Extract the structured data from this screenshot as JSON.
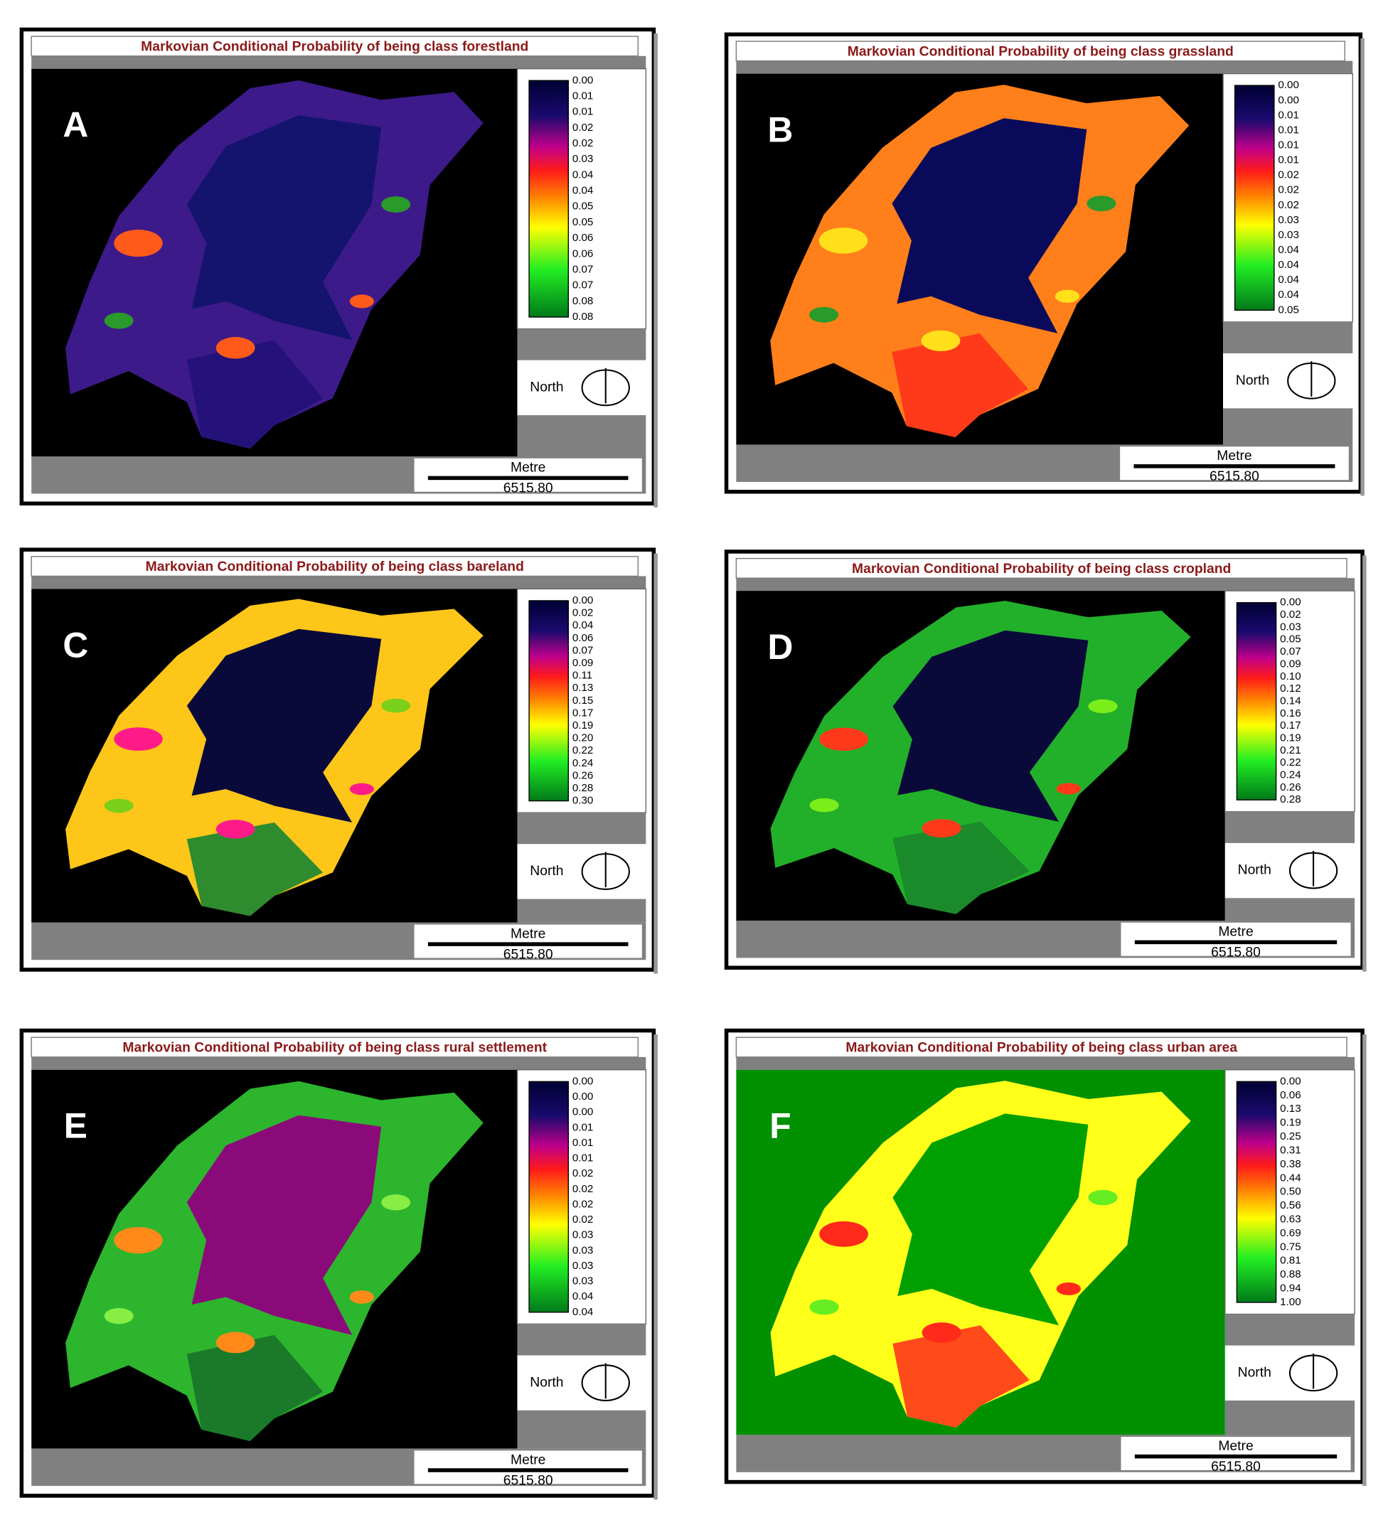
{
  "panels": [
    {
      "letter": "A",
      "title": "Markovian Conditional Probability of being class forestland",
      "legend": [
        "0.00",
        "0.01",
        "0.01",
        "0.02",
        "0.02",
        "0.03",
        "0.04",
        "0.04",
        "0.05",
        "0.05",
        "0.06",
        "0.06",
        "0.07",
        "0.07",
        "0.08",
        "0.08"
      ],
      "north": "North",
      "scale_unit": "Metre",
      "scale_value": "6515.80"
    },
    {
      "letter": "B",
      "title": "Markovian Conditional Probability of being class grassland",
      "legend": [
        "0.00",
        "0.00",
        "0.01",
        "0.01",
        "0.01",
        "0.01",
        "0.02",
        "0.02",
        "0.02",
        "0.03",
        "0.03",
        "0.04",
        "0.04",
        "0.04",
        "0.04",
        "0.05"
      ],
      "north": "North",
      "scale_unit": "Metre",
      "scale_value": "6515.80"
    },
    {
      "letter": "C",
      "title": "Markovian Conditional Probability of being class bareland",
      "legend": [
        "0.00",
        "0.02",
        "0.04",
        "0.06",
        "0.07",
        "0.09",
        "0.11",
        "0.13",
        "0.15",
        "0.17",
        "0.19",
        "0.20",
        "0.22",
        "0.24",
        "0.26",
        "0.28",
        "0.30"
      ],
      "north": "North",
      "scale_unit": "Metre",
      "scale_value": "6515.80"
    },
    {
      "letter": "D",
      "title": "Markovian Conditional Probability of being class cropland",
      "legend": [
        "0.00",
        "0.02",
        "0.03",
        "0.05",
        "0.07",
        "0.09",
        "0.10",
        "0.12",
        "0.14",
        "0.16",
        "0.17",
        "0.19",
        "0.21",
        "0.22",
        "0.24",
        "0.26",
        "0.28"
      ],
      "north": "North",
      "scale_unit": "Metre",
      "scale_value": "6515.80"
    },
    {
      "letter": "E",
      "title": "Markovian Conditional Probability of being class rural settlement",
      "legend": [
        "0.00",
        "0.00",
        "0.00",
        "0.01",
        "0.01",
        "0.01",
        "0.02",
        "0.02",
        "0.02",
        "0.02",
        "0.03",
        "0.03",
        "0.03",
        "0.03",
        "0.04",
        "0.04"
      ],
      "north": "North",
      "scale_unit": "Metre",
      "scale_value": "6515.80"
    },
    {
      "letter": "F",
      "title": "Markovian Conditional Probability of being class urban area",
      "legend": [
        "0.00",
        "0.06",
        "0.13",
        "0.19",
        "0.25",
        "0.31",
        "0.38",
        "0.44",
        "0.50",
        "0.56",
        "0.63",
        "0.69",
        "0.75",
        "0.81",
        "0.88",
        "0.94",
        "1.00"
      ],
      "north": "North",
      "scale_unit": "Metre",
      "scale_value": "6515.80"
    }
  ]
}
